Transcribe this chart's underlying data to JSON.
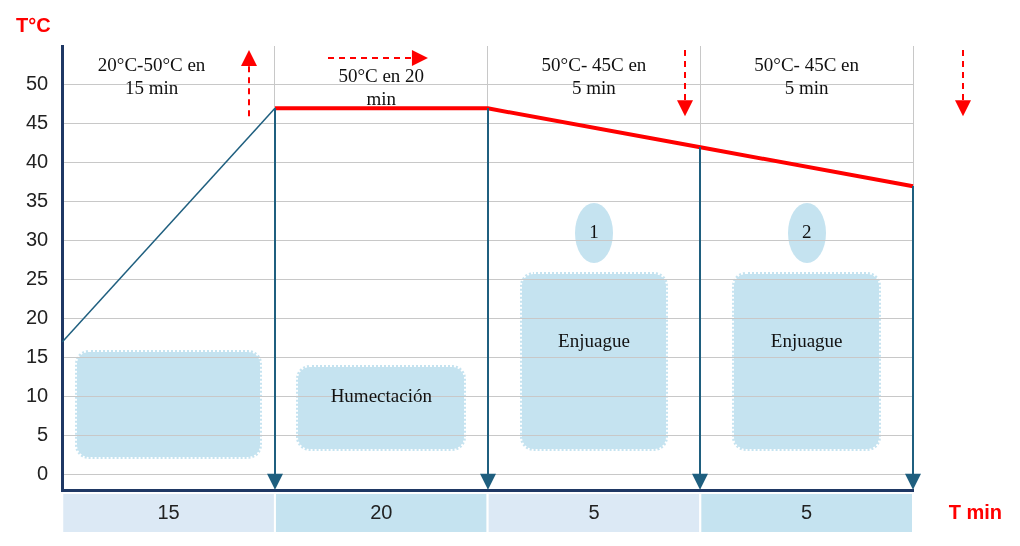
{
  "chart_data": {
    "type": "line",
    "xlabel": "T min",
    "ylabel": "T°C",
    "categories": [
      null,
      null,
      null,
      null,
      null
    ],
    "series": [
      {
        "values": [
          17,
          47,
          null,
          null,
          null
        ],
        "color": "#1f5f7f"
      },
      {
        "values": [
          null,
          47,
          47,
          42,
          37
        ],
        "color": "#ff0000"
      }
    ],
    "ylim": [
      -2,
      55
    ],
    "yticks": [
      0,
      5,
      10,
      15,
      20,
      25,
      30,
      35,
      40,
      45,
      50
    ],
    "grid": true,
    "legend": false,
    "tick_labels": "y",
    "annotations": [
      "20°C-50°C en 15 min",
      "50°C en 20 min",
      "50°C- 45C en 5 min",
      "50°C- 45C en 5 min",
      "Humectación",
      "1",
      "2",
      "Enjuague",
      "Enjuague",
      "15",
      "20",
      "5",
      "5"
    ]
  }
}
